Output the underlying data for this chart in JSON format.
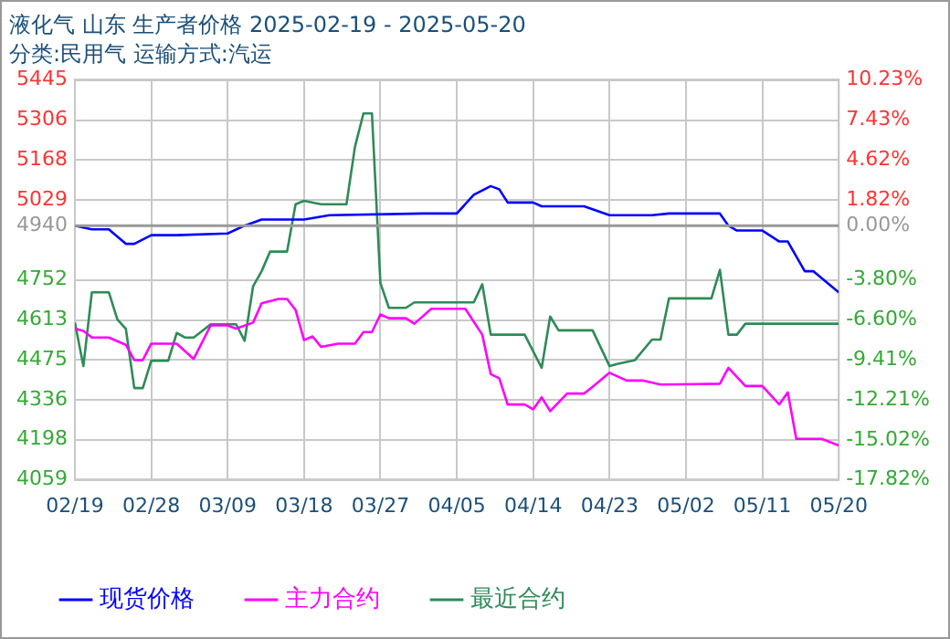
{
  "chart_data": {
    "type": "line",
    "title": "液化气 山东 生产者价格 2025-02-19 - 2025-05-20",
    "subtitle": "分类:民用气 运输方式:汽运",
    "xlim": [
      "2025-02-19",
      "2025-05-20"
    ],
    "xticks": [
      {
        "value": "2025-02-19",
        "label": "02/19"
      },
      {
        "value": "2025-02-28",
        "label": "02/28"
      },
      {
        "value": "2025-03-09",
        "label": "03/09"
      },
      {
        "value": "2025-03-18",
        "label": "03/18"
      },
      {
        "value": "2025-03-27",
        "label": "03/27"
      },
      {
        "value": "2025-04-05",
        "label": "04/05"
      },
      {
        "value": "2025-04-14",
        "label": "04/14"
      },
      {
        "value": "2025-04-23",
        "label": "04/23"
      },
      {
        "value": "2025-05-02",
        "label": "05/02"
      },
      {
        "value": "2025-05-11",
        "label": "05/11"
      },
      {
        "value": "2025-05-20",
        "label": "05/20"
      }
    ],
    "ylim": [
      4059,
      5445
    ],
    "yticks": [
      4059,
      4198,
      4336,
      4475,
      4613,
      4752,
      4940,
      5029,
      5168,
      5306,
      5445
    ],
    "y2lim": [
      -17.82,
      10.23
    ],
    "y2ticks": [
      {
        "value": -17.82,
        "label": "-17.82%"
      },
      {
        "value": -15.02,
        "label": "-15.02%"
      },
      {
        "value": -12.21,
        "label": "-12.21%"
      },
      {
        "value": -9.41,
        "label": "-9.41%"
      },
      {
        "value": -6.6,
        "label": "-6.60%"
      },
      {
        "value": -3.8,
        "label": "-3.80%"
      },
      {
        "value": 0,
        "label": "0.00%"
      },
      {
        "value": 1.82,
        "label": "1.82%"
      },
      {
        "value": 4.62,
        "label": "4.62%"
      },
      {
        "value": 7.43,
        "label": "7.43%"
      },
      {
        "value": 10.23,
        "label": "10.23%"
      }
    ],
    "ref_lines": [
      {
        "axis": "y",
        "value": 4940,
        "color": "#999999"
      }
    ],
    "grid": true,
    "legend": "bottom",
    "marker": "none",
    "line_style": "solid",
    "series": [
      {
        "name": "现货价格",
        "color": "#0000ff",
        "x": [
          "2025-02-19",
          "2025-02-21",
          "2025-02-23",
          "2025-02-25",
          "2025-02-26",
          "2025-02-28",
          "2025-03-03",
          "2025-03-09",
          "2025-03-11",
          "2025-03-13",
          "2025-03-18",
          "2025-03-21",
          "2025-04-01",
          "2025-04-05",
          "2025-04-07",
          "2025-04-09",
          "2025-04-10",
          "2025-04-11",
          "2025-04-14",
          "2025-04-15",
          "2025-04-20",
          "2025-04-23",
          "2025-04-28",
          "2025-04-30",
          "2025-05-06",
          "2025-05-07",
          "2025-05-08",
          "2025-05-11",
          "2025-05-13",
          "2025-05-14",
          "2025-05-16",
          "2025-05-17",
          "2025-05-20"
        ],
        "values": [
          4940,
          4927,
          4927,
          4877,
          4877,
          4907,
          4907,
          4913,
          4940,
          4961,
          4961,
          4976,
          4982,
          4982,
          5047,
          5077,
          5066,
          5020,
          5020,
          5007,
          5007,
          4976,
          4976,
          4982,
          4982,
          4940,
          4923,
          4923,
          4885,
          4885,
          4782,
          4782,
          4709
        ]
      },
      {
        "name": "主力合约",
        "color": "#ff00ff",
        "x": [
          "2025-02-19",
          "2025-02-20",
          "2025-02-21",
          "2025-02-23",
          "2025-02-25",
          "2025-02-26",
          "2025-02-27",
          "2025-02-28",
          "2025-03-03",
          "2025-03-05",
          "2025-03-07",
          "2025-03-09",
          "2025-03-10",
          "2025-03-12",
          "2025-03-13",
          "2025-03-15",
          "2025-03-16",
          "2025-03-17",
          "2025-03-18",
          "2025-03-19",
          "2025-03-20",
          "2025-03-22",
          "2025-03-24",
          "2025-03-25",
          "2025-03-26",
          "2025-03-27",
          "2025-03-28",
          "2025-03-30",
          "2025-03-31",
          "2025-04-02",
          "2025-04-06",
          "2025-04-08",
          "2025-04-09",
          "2025-04-10",
          "2025-04-11",
          "2025-04-13",
          "2025-04-14",
          "2025-04-15",
          "2025-04-16",
          "2025-04-18",
          "2025-04-20",
          "2025-04-21",
          "2025-04-23",
          "2025-04-25",
          "2025-04-27",
          "2025-04-29",
          "2025-05-06",
          "2025-05-07",
          "2025-05-09",
          "2025-05-11",
          "2025-05-13",
          "2025-05-14",
          "2025-05-15",
          "2025-05-18",
          "2025-05-20"
        ],
        "values": [
          4583,
          4575,
          4552,
          4552,
          4527,
          4474,
          4474,
          4531,
          4531,
          4478,
          4594,
          4594,
          4583,
          4604,
          4671,
          4686,
          4686,
          4648,
          4543,
          4556,
          4520,
          4531,
          4531,
          4571,
          4571,
          4632,
          4619,
          4619,
          4600,
          4652,
          4652,
          4562,
          4425,
          4411,
          4320,
          4320,
          4303,
          4345,
          4297,
          4358,
          4358,
          4381,
          4430,
          4403,
          4403,
          4389,
          4392,
          4447,
          4384,
          4384,
          4320,
          4362,
          4201,
          4201,
          4178
        ]
      },
      {
        "name": "最近合约",
        "color": "#2e8b57",
        "x": [
          "2025-02-19",
          "2025-02-20",
          "2025-02-21",
          "2025-02-23",
          "2025-02-24",
          "2025-02-25",
          "2025-02-26",
          "2025-02-27",
          "2025-02-28",
          "2025-03-02",
          "2025-03-03",
          "2025-03-04",
          "2025-03-05",
          "2025-03-07",
          "2025-03-10",
          "2025-03-11",
          "2025-03-12",
          "2025-03-13",
          "2025-03-14",
          "2025-03-16",
          "2025-03-17",
          "2025-03-18",
          "2025-03-20",
          "2025-03-23",
          "2025-03-24",
          "2025-03-25",
          "2025-03-26",
          "2025-03-27",
          "2025-03-28",
          "2025-03-30",
          "2025-03-31",
          "2025-04-07",
          "2025-04-08",
          "2025-04-09",
          "2025-04-13",
          "2025-04-15",
          "2025-04-16",
          "2025-04-17",
          "2025-04-21",
          "2025-04-23",
          "2025-04-24",
          "2025-04-26",
          "2025-04-28",
          "2025-04-29",
          "2025-04-30",
          "2025-05-05",
          "2025-05-06",
          "2025-05-07",
          "2025-05-08",
          "2025-05-09",
          "2025-05-20"
        ],
        "values": [
          4604,
          4453,
          4709,
          4709,
          4615,
          4583,
          4377,
          4377,
          4472,
          4472,
          4568,
          4552,
          4552,
          4598,
          4598,
          4541,
          4730,
          4782,
          4850,
          4850,
          5014,
          5026,
          5014,
          5014,
          5213,
          5329,
          5329,
          4741,
          4655,
          4655,
          4674,
          4674,
          4737,
          4562,
          4562,
          4447,
          4625,
          4577,
          4577,
          4453,
          4461,
          4474,
          4545,
          4545,
          4688,
          4688,
          4787,
          4562,
          4562,
          4600,
          4600
        ]
      }
    ]
  }
}
